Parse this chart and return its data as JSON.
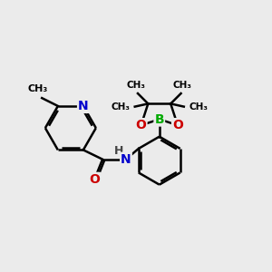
{
  "bg_color": "#ebebeb",
  "atom_colors": {
    "C": "#000000",
    "N": "#0000cc",
    "O": "#cc0000",
    "B": "#00aa00",
    "H": "#444444"
  },
  "bond_color": "#000000",
  "bond_width": 1.8,
  "figsize": [
    3.0,
    3.0
  ],
  "dpi": 100,
  "xlim": [
    0,
    10
  ],
  "ylim": [
    0,
    10
  ]
}
